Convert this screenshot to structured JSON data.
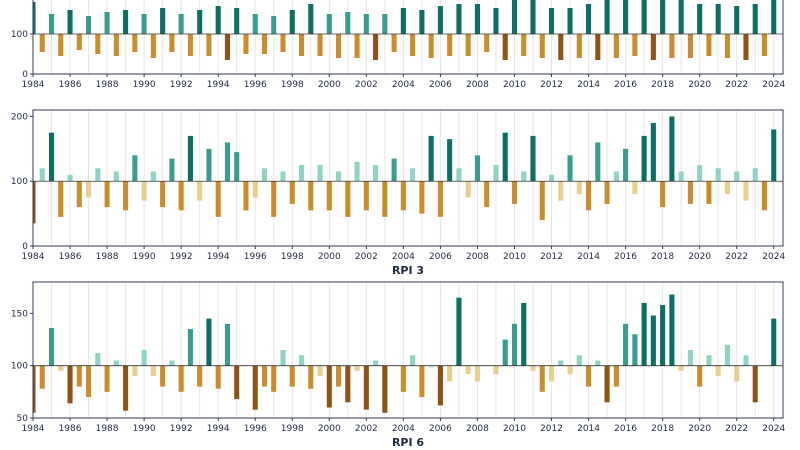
{
  "colors": {
    "pos_strong": "#0f6e63",
    "pos_mid": "#3a9c8e",
    "pos_light": "#8fd3c4",
    "neg_strong": "#8c5216",
    "neg_mid": "#c98d2f",
    "neg_light": "#e8cf91",
    "neutral": "#e2e2e2",
    "axis": "#2f3b5c",
    "grid": "#e6e6e6"
  },
  "chart_data": [
    {
      "type": "bar",
      "title": "",
      "baseline": 100,
      "ylim": [
        0,
        200
      ],
      "yticks": [
        0,
        100
      ],
      "xlim": [
        1984,
        2024.5
      ],
      "xticks": [
        1984,
        1986,
        1988,
        1990,
        1992,
        1994,
        1996,
        1998,
        2000,
        2002,
        2004,
        2006,
        2008,
        2010,
        2012,
        2014,
        2016,
        2018,
        2020,
        2022,
        2024
      ],
      "x": [
        1984.0,
        1984.5,
        1985.0,
        1985.5,
        1986.0,
        1986.5,
        1987.0,
        1987.5,
        1988.0,
        1988.5,
        1989.0,
        1989.5,
        1990.0,
        1990.5,
        1991.0,
        1991.5,
        1992.0,
        1992.5,
        1993.0,
        1993.5,
        1994.0,
        1994.5,
        1995.0,
        1995.5,
        1996.0,
        1996.5,
        1997.0,
        1997.5,
        1998.0,
        1998.5,
        1999.0,
        1999.5,
        2000.0,
        2000.5,
        2001.0,
        2001.5,
        2002.0,
        2002.5,
        2003.0,
        2003.5,
        2004.0,
        2004.5,
        2005.0,
        2005.5,
        2006.0,
        2006.5,
        2007.0,
        2007.5,
        2008.0,
        2008.5,
        2009.0,
        2009.5,
        2010.0,
        2010.5,
        2011.0,
        2011.5,
        2012.0,
        2012.5,
        2013.0,
        2013.5,
        2014.0,
        2014.5,
        2015.0,
        2015.5,
        2016.0,
        2016.5,
        2017.0,
        2017.5,
        2018.0,
        2018.5,
        2019.0,
        2019.5,
        2020.0,
        2020.5,
        2021.0,
        2021.5,
        2022.0,
        2022.5,
        2023.0,
        2023.5,
        2024.0
      ],
      "values": [
        180,
        55,
        150,
        45,
        160,
        60,
        145,
        50,
        155,
        45,
        160,
        55,
        150,
        40,
        165,
        55,
        150,
        45,
        160,
        45,
        170,
        35,
        165,
        50,
        150,
        50,
        145,
        55,
        160,
        45,
        175,
        45,
        150,
        40,
        155,
        40,
        150,
        35,
        150,
        55,
        165,
        45,
        160,
        40,
        170,
        45,
        175,
        45,
        175,
        55,
        165,
        35,
        185,
        45,
        190,
        40,
        165,
        35,
        165,
        40,
        175,
        35,
        190,
        40,
        185,
        45,
        190,
        35,
        185,
        40,
        190,
        40,
        175,
        45,
        175,
        40,
        170,
        35,
        175,
        45,
        185
      ]
    },
    {
      "type": "bar",
      "title": "RPI 3",
      "baseline": 100,
      "ylim": [
        0,
        210
      ],
      "yticks": [
        0,
        100,
        200
      ],
      "xlim": [
        1984,
        2024.5
      ],
      "xticks": [
        1984,
        1986,
        1988,
        1990,
        1992,
        1994,
        1996,
        1998,
        2000,
        2002,
        2004,
        2006,
        2008,
        2010,
        2012,
        2014,
        2016,
        2018,
        2020,
        2022,
        2024
      ],
      "x": [
        1984.0,
        1984.5,
        1985.0,
        1985.5,
        1986.0,
        1986.5,
        1987.0,
        1987.5,
        1988.0,
        1988.5,
        1989.0,
        1989.5,
        1990.0,
        1990.5,
        1991.0,
        1991.5,
        1992.0,
        1992.5,
        1993.0,
        1993.5,
        1994.0,
        1994.5,
        1995.0,
        1995.5,
        1996.0,
        1996.5,
        1997.0,
        1997.5,
        1998.0,
        1998.5,
        1999.0,
        1999.5,
        2000.0,
        2000.5,
        2001.0,
        2001.5,
        2002.0,
        2002.5,
        2003.0,
        2003.5,
        2004.0,
        2004.5,
        2005.0,
        2005.5,
        2006.0,
        2006.5,
        2007.0,
        2007.5,
        2008.0,
        2008.5,
        2009.0,
        2009.5,
        2010.0,
        2010.5,
        2011.0,
        2011.5,
        2012.0,
        2012.5,
        2013.0,
        2013.5,
        2014.0,
        2014.5,
        2015.0,
        2015.5,
        2016.0,
        2016.5,
        2017.0,
        2017.5,
        2018.0,
        2018.5,
        2019.0,
        2019.5,
        2020.0,
        2020.5,
        2021.0,
        2021.5,
        2022.0,
        2022.5,
        2023.0,
        2023.5,
        2024.0
      ],
      "values": [
        35,
        120,
        175,
        45,
        110,
        60,
        75,
        120,
        60,
        115,
        55,
        140,
        70,
        115,
        60,
        135,
        55,
        170,
        70,
        150,
        45,
        160,
        145,
        55,
        75,
        120,
        45,
        115,
        65,
        125,
        55,
        125,
        55,
        115,
        45,
        130,
        55,
        125,
        45,
        135,
        55,
        120,
        50,
        170,
        45,
        165,
        120,
        75,
        140,
        60,
        125,
        175,
        65,
        115,
        170,
        40,
        110,
        70,
        140,
        80,
        55,
        160,
        65,
        115,
        150,
        80,
        170,
        190,
        60,
        200,
        115,
        65,
        125,
        65,
        120,
        80,
        115,
        70,
        120,
        55,
        180
      ]
    },
    {
      "type": "bar",
      "title": "RPI 6",
      "baseline": 100,
      "ylim": [
        50,
        180
      ],
      "yticks": [
        50,
        100,
        150
      ],
      "xlim": [
        1984,
        2024.5
      ],
      "xticks": [
        1984,
        1986,
        1988,
        1990,
        1992,
        1994,
        1996,
        1998,
        2000,
        2002,
        2004,
        2006,
        2008,
        2010,
        2012,
        2014,
        2016,
        2018,
        2020,
        2022,
        2024
      ],
      "x": [
        1984.0,
        1984.5,
        1985.0,
        1985.5,
        1986.0,
        1986.5,
        1987.0,
        1987.5,
        1988.0,
        1988.5,
        1989.0,
        1989.5,
        1990.0,
        1990.5,
        1991.0,
        1991.5,
        1992.0,
        1992.5,
        1993.0,
        1993.5,
        1994.0,
        1994.5,
        1995.0,
        1995.5,
        1996.0,
        1996.5,
        1997.0,
        1997.5,
        1998.0,
        1998.5,
        1999.0,
        1999.5,
        2000.0,
        2000.5,
        2001.0,
        2001.5,
        2002.0,
        2002.5,
        2003.0,
        2003.5,
        2004.0,
        2004.5,
        2005.0,
        2005.5,
        2006.0,
        2006.5,
        2007.0,
        2007.5,
        2008.0,
        2008.5,
        2009.0,
        2009.5,
        2010.0,
        2010.5,
        2011.0,
        2011.5,
        2012.0,
        2012.5,
        2013.0,
        2013.5,
        2014.0,
        2014.5,
        2015.0,
        2015.5,
        2016.0,
        2016.5,
        2017.0,
        2017.5,
        2018.0,
        2018.5,
        2019.0,
        2019.5,
        2020.0,
        2020.5,
        2021.0,
        2021.5,
        2022.0,
        2022.5,
        2023.0,
        2023.5,
        2024.0
      ],
      "values": [
        55,
        78,
        136,
        95,
        64,
        80,
        70,
        112,
        75,
        105,
        57,
        90,
        115,
        90,
        80,
        105,
        75,
        135,
        80,
        145,
        78,
        140,
        68,
        100,
        58,
        80,
        75,
        115,
        80,
        110,
        78,
        90,
        60,
        80,
        65,
        95,
        58,
        105,
        55,
        100,
        75,
        110,
        70,
        98,
        62,
        85,
        165,
        92,
        85,
        100,
        92,
        125,
        140,
        160,
        95,
        75,
        85,
        105,
        92,
        110,
        80,
        105,
        65,
        80,
        140,
        130,
        160,
        148,
        158,
        168,
        95,
        115,
        80,
        110,
        90,
        120,
        85,
        110,
        65,
        100,
        145
      ]
    }
  ]
}
